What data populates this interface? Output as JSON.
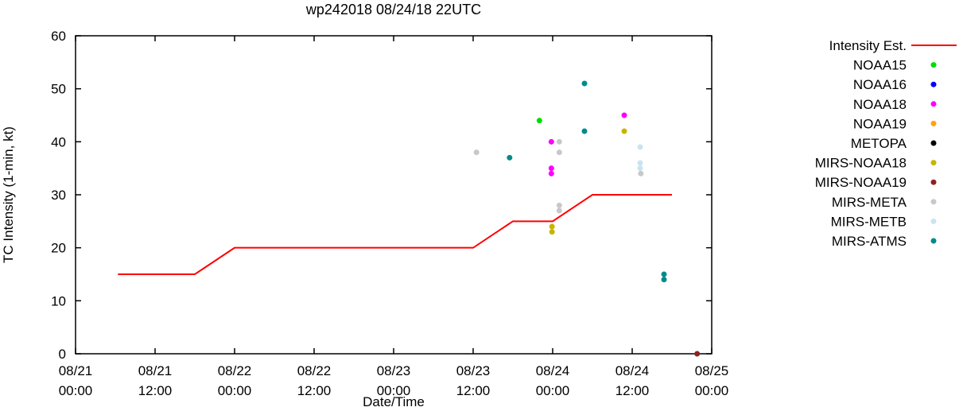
{
  "chart_data": {
    "type": "scatter",
    "title": "wp242018 08/24/18 22UTC",
    "xlabel": "Date/Time",
    "ylabel": "TC Intensity (1-min, kt)",
    "ylim": [
      0,
      60
    ],
    "ytick_interval": 10,
    "x_hours_range": [
      0,
      96
    ],
    "xtick_interval_hours": 12,
    "grid": false,
    "legend_position": "right-outside",
    "xtick_labels": [
      {
        "date": "08/21",
        "time": "00:00"
      },
      {
        "date": "08/21",
        "time": "12:00"
      },
      {
        "date": "08/22",
        "time": "00:00"
      },
      {
        "date": "08/22",
        "time": "12:00"
      },
      {
        "date": "08/23",
        "time": "00:00"
      },
      {
        "date": "08/23",
        "time": "12:00"
      },
      {
        "date": "08/24",
        "time": "00:00"
      },
      {
        "date": "08/24",
        "time": "12:00"
      },
      {
        "date": "08/25",
        "time": "00:00"
      }
    ],
    "intensity_line": {
      "label": "Intensity Est.",
      "color": "#ff0000",
      "points_hours_kt": [
        [
          6.4,
          15
        ],
        [
          18,
          15
        ],
        [
          24,
          20
        ],
        [
          60,
          20
        ],
        [
          66,
          25
        ],
        [
          72,
          25
        ],
        [
          78,
          30
        ],
        [
          90,
          30
        ]
      ]
    },
    "series": [
      {
        "label": "NOAA15",
        "color": "#00dd00",
        "points_hours_kt": [
          [
            70,
            44
          ]
        ]
      },
      {
        "label": "NOAA16",
        "color": "#0000ff",
        "points_hours_kt": []
      },
      {
        "label": "NOAA18",
        "color": "#ff00ff",
        "points_hours_kt": [
          [
            71.8,
            40
          ],
          [
            71.8,
            35
          ],
          [
            71.8,
            34
          ],
          [
            82.8,
            45
          ]
        ]
      },
      {
        "label": "NOAA19",
        "color": "#ffa500",
        "points_hours_kt": []
      },
      {
        "label": "METOPA",
        "color": "#000000",
        "points_hours_kt": []
      },
      {
        "label": "MIRS-NOAA18",
        "color": "#c8b400",
        "points_hours_kt": [
          [
            71.9,
            24
          ],
          [
            71.9,
            23
          ],
          [
            82.8,
            42
          ]
        ]
      },
      {
        "label": "MIRS-NOAA19",
        "color": "#8b2323",
        "points_hours_kt": [
          [
            93.8,
            0
          ]
        ]
      },
      {
        "label": "MIRS-META",
        "color": "#c8c8c8",
        "points_hours_kt": [
          [
            60.5,
            38
          ],
          [
            73,
            40
          ],
          [
            73,
            38
          ],
          [
            73,
            28
          ],
          [
            73,
            27
          ],
          [
            85.3,
            34
          ]
        ]
      },
      {
        "label": "MIRS-METB",
        "color": "#c9e4ef",
        "points_hours_kt": [
          [
            85.2,
            39
          ],
          [
            85.2,
            36
          ],
          [
            85.2,
            35
          ]
        ]
      },
      {
        "label": "MIRS-ATMS",
        "color": "#008b8b",
        "points_hours_kt": [
          [
            65.5,
            37
          ],
          [
            76.8,
            51
          ],
          [
            76.8,
            42
          ],
          [
            88.8,
            15
          ],
          [
            88.8,
            14
          ]
        ]
      }
    ]
  }
}
